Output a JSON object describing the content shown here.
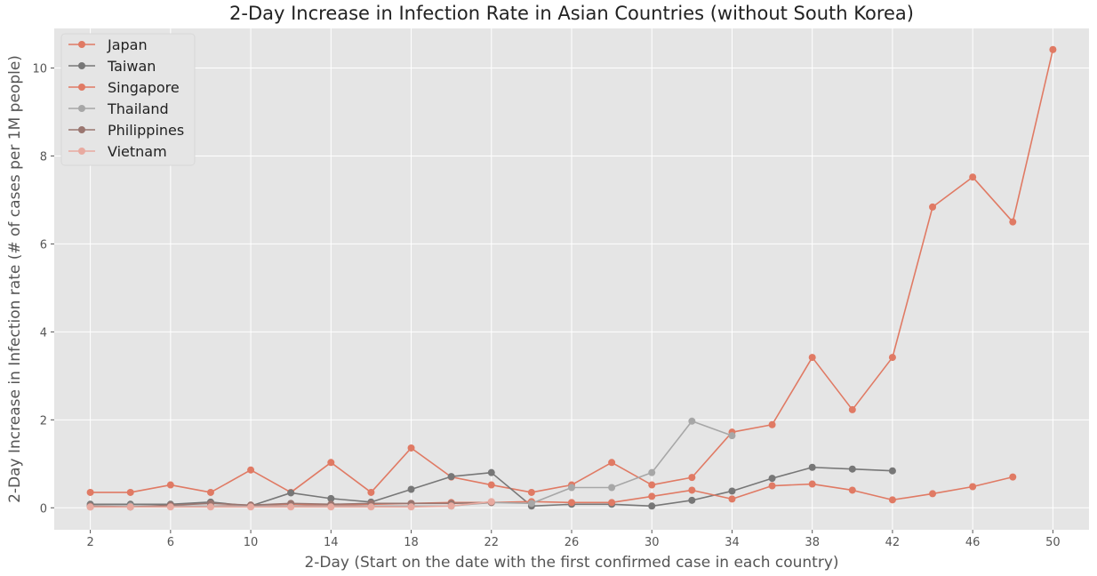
{
  "chart_data": {
    "type": "line",
    "title": "2-Day Increase in Infection Rate in Asian Countries (without South Korea)",
    "xlabel": "2-Day (Start on the date with the first confirmed case in each country)",
    "ylabel": "2-Day Increase in Infection rate (# of cases per 1M people)",
    "xlim": [
      0.2,
      51.8
    ],
    "ylim": [
      -0.5,
      10.9
    ],
    "xticks": [
      2,
      6,
      10,
      14,
      18,
      22,
      26,
      30,
      34,
      38,
      42,
      46,
      50
    ],
    "yticks": [
      0,
      2,
      4,
      6,
      8,
      10
    ],
    "grid": true,
    "legend": "top-left",
    "series": [
      {
        "name": "Japan",
        "color": "#e07a64",
        "x": [
          2,
          4,
          6,
          8,
          10,
          12,
          14,
          16,
          18,
          20,
          22,
          24,
          26,
          28,
          30,
          32,
          34,
          36,
          38,
          40,
          42,
          44,
          46,
          48,
          50
        ],
        "y": [
          0.35,
          0.35,
          0.52,
          0.35,
          0.86,
          0.35,
          1.03,
          0.35,
          1.36,
          0.7,
          0.52,
          0.35,
          0.52,
          1.03,
          0.52,
          0.69,
          1.72,
          1.89,
          3.42,
          2.23,
          3.42,
          6.84,
          7.52,
          6.5,
          10.42
        ]
      },
      {
        "name": "Taiwan",
        "color": "#777777",
        "x": [
          2,
          4,
          6,
          8,
          10,
          12,
          14,
          16,
          18,
          20,
          22,
          24,
          26,
          28,
          30,
          32,
          34,
          36,
          38,
          40,
          42
        ],
        "y": [
          0.08,
          0.08,
          0.08,
          0.13,
          0.04,
          0.34,
          0.21,
          0.13,
          0.42,
          0.71,
          0.8,
          0.04,
          0.08,
          0.08,
          0.04,
          0.17,
          0.38,
          0.67,
          0.92,
          0.88,
          0.84
        ]
      },
      {
        "name": "Singapore",
        "color": "#e07a64",
        "x": [
          2,
          4,
          6,
          8,
          10,
          12,
          14,
          16,
          18,
          20,
          22,
          24,
          26,
          28,
          30,
          32,
          34,
          36,
          38,
          40,
          42,
          44,
          46,
          48
        ],
        "y": [
          0.02,
          0.02,
          0.04,
          0.04,
          0.06,
          0.08,
          0.06,
          0.08,
          0.1,
          0.12,
          0.12,
          0.14,
          0.12,
          0.12,
          0.26,
          0.4,
          0.2,
          0.5,
          0.54,
          0.4,
          0.18,
          0.32,
          0.48,
          0.7
        ]
      },
      {
        "name": "Thailand",
        "color": "#a7a7a7",
        "x": [
          2,
          4,
          6,
          8,
          10,
          12,
          14,
          16,
          18,
          20,
          22,
          24,
          26,
          28,
          30,
          32,
          34
        ],
        "y": [
          0.04,
          0.04,
          0.04,
          0.04,
          0.04,
          0.04,
          0.04,
          0.04,
          0.04,
          0.04,
          0.12,
          0.1,
          0.46,
          0.46,
          0.8,
          1.97,
          1.64
        ]
      },
      {
        "name": "Philippines",
        "color": "#9a7670",
        "x": [
          2,
          4,
          6,
          8,
          10,
          12,
          14,
          16,
          18,
          20,
          22
        ],
        "y": [
          0.04,
          0.02,
          0.06,
          0.1,
          0.06,
          0.1,
          0.08,
          0.1,
          0.1,
          0.1,
          0.12
        ]
      },
      {
        "name": "Vietnam",
        "color": "#e8aaa0",
        "x": [
          2,
          4,
          6,
          8,
          10,
          12,
          14,
          16,
          18,
          20,
          22
        ],
        "y": [
          0.02,
          0.02,
          0.02,
          0.02,
          0.02,
          0.02,
          0.02,
          0.02,
          0.02,
          0.04,
          0.14
        ]
      }
    ]
  }
}
